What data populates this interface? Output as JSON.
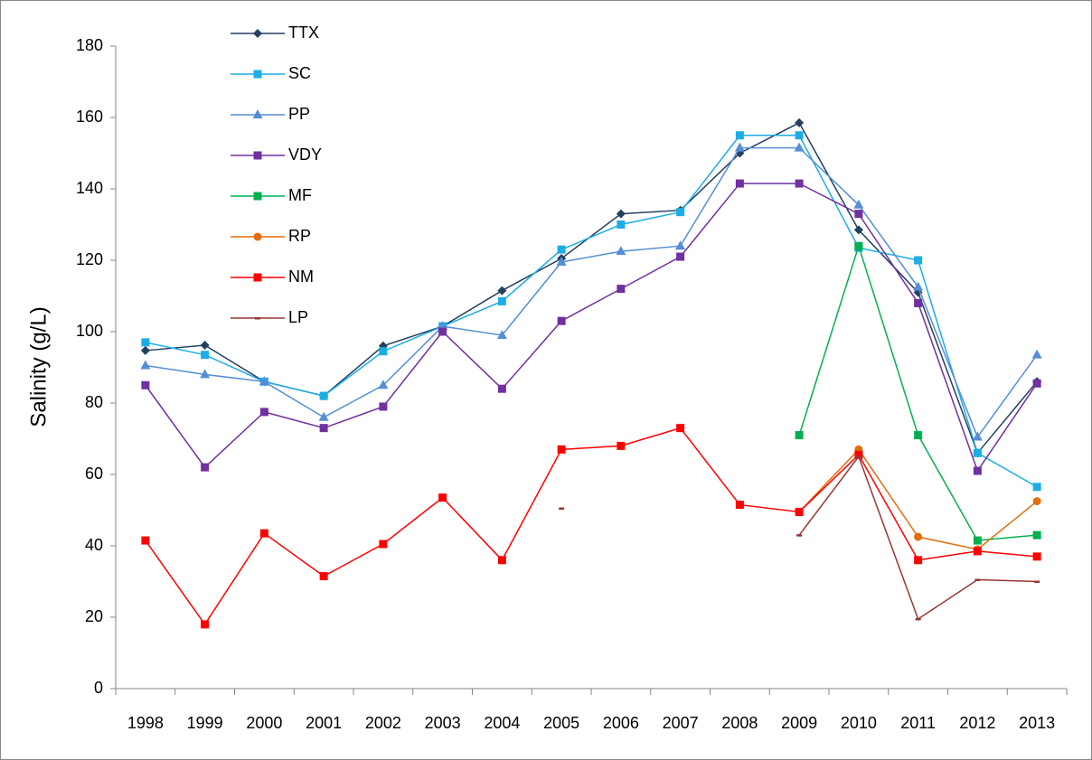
{
  "chart_data": {
    "type": "line",
    "y_label": "Salinity (g/L)",
    "categories": [
      "1998",
      "1999",
      "2000",
      "2001",
      "2002",
      "2003",
      "2004",
      "2005",
      "2006",
      "2007",
      "2008",
      "2009",
      "2010",
      "2011",
      "2012",
      "2013"
    ],
    "ylim": [
      0,
      180
    ],
    "yticks": [
      0,
      20,
      40,
      60,
      80,
      100,
      120,
      140,
      160,
      180
    ],
    "legend": "top-left",
    "series": [
      {
        "name": "TTX",
        "color": "#243F60",
        "marker": "diamond",
        "values": [
          94.7,
          96.2,
          86,
          82,
          96,
          101.5,
          111.5,
          120.5,
          133,
          134,
          150,
          158.5,
          128.5,
          111,
          66,
          86
        ]
      },
      {
        "name": "SC",
        "color": "#1CADE4",
        "marker": "square",
        "values": [
          97,
          93.5,
          86,
          82,
          94.5,
          101.5,
          108.5,
          123,
          130,
          133.5,
          155,
          155,
          123.5,
          120,
          66,
          56.5
        ]
      },
      {
        "name": "PP",
        "color": "#558ED5",
        "marker": "triangle",
        "values": [
          90.5,
          88,
          86,
          76,
          85,
          101.5,
          99,
          119.5,
          122.5,
          124,
          151.5,
          151.5,
          135.5,
          112.5,
          70.5,
          93.5
        ]
      },
      {
        "name": "VDY",
        "color": "#7030A0",
        "marker": "square",
        "values": [
          85,
          62,
          77.5,
          73,
          79,
          100,
          84,
          103,
          112,
          121,
          141.5,
          141.5,
          133,
          108,
          61,
          85.5
        ]
      },
      {
        "name": "MF",
        "color": "#00B050",
        "marker": "square",
        "values": [
          null,
          null,
          null,
          null,
          null,
          null,
          null,
          null,
          null,
          null,
          null,
          71,
          124,
          71,
          41.5,
          43
        ]
      },
      {
        "name": "RP",
        "color": "#E46C0A",
        "marker": "circle",
        "values": [
          null,
          null,
          null,
          null,
          null,
          null,
          null,
          null,
          null,
          null,
          null,
          49.5,
          67,
          42.5,
          39,
          52.5
        ]
      },
      {
        "name": "NM",
        "color": "#FF0000",
        "marker": "square",
        "values": [
          41.5,
          18,
          43.5,
          31.5,
          40.5,
          53.5,
          36,
          67,
          68,
          73,
          51.5,
          49.5,
          65.5,
          36,
          38.5,
          37
        ]
      },
      {
        "name": "LP",
        "color": "#953735",
        "marker": "dash",
        "values": [
          null,
          null,
          null,
          null,
          null,
          null,
          null,
          50.5,
          null,
          null,
          null,
          43,
          65,
          19.5,
          30.5,
          30
        ]
      }
    ]
  }
}
